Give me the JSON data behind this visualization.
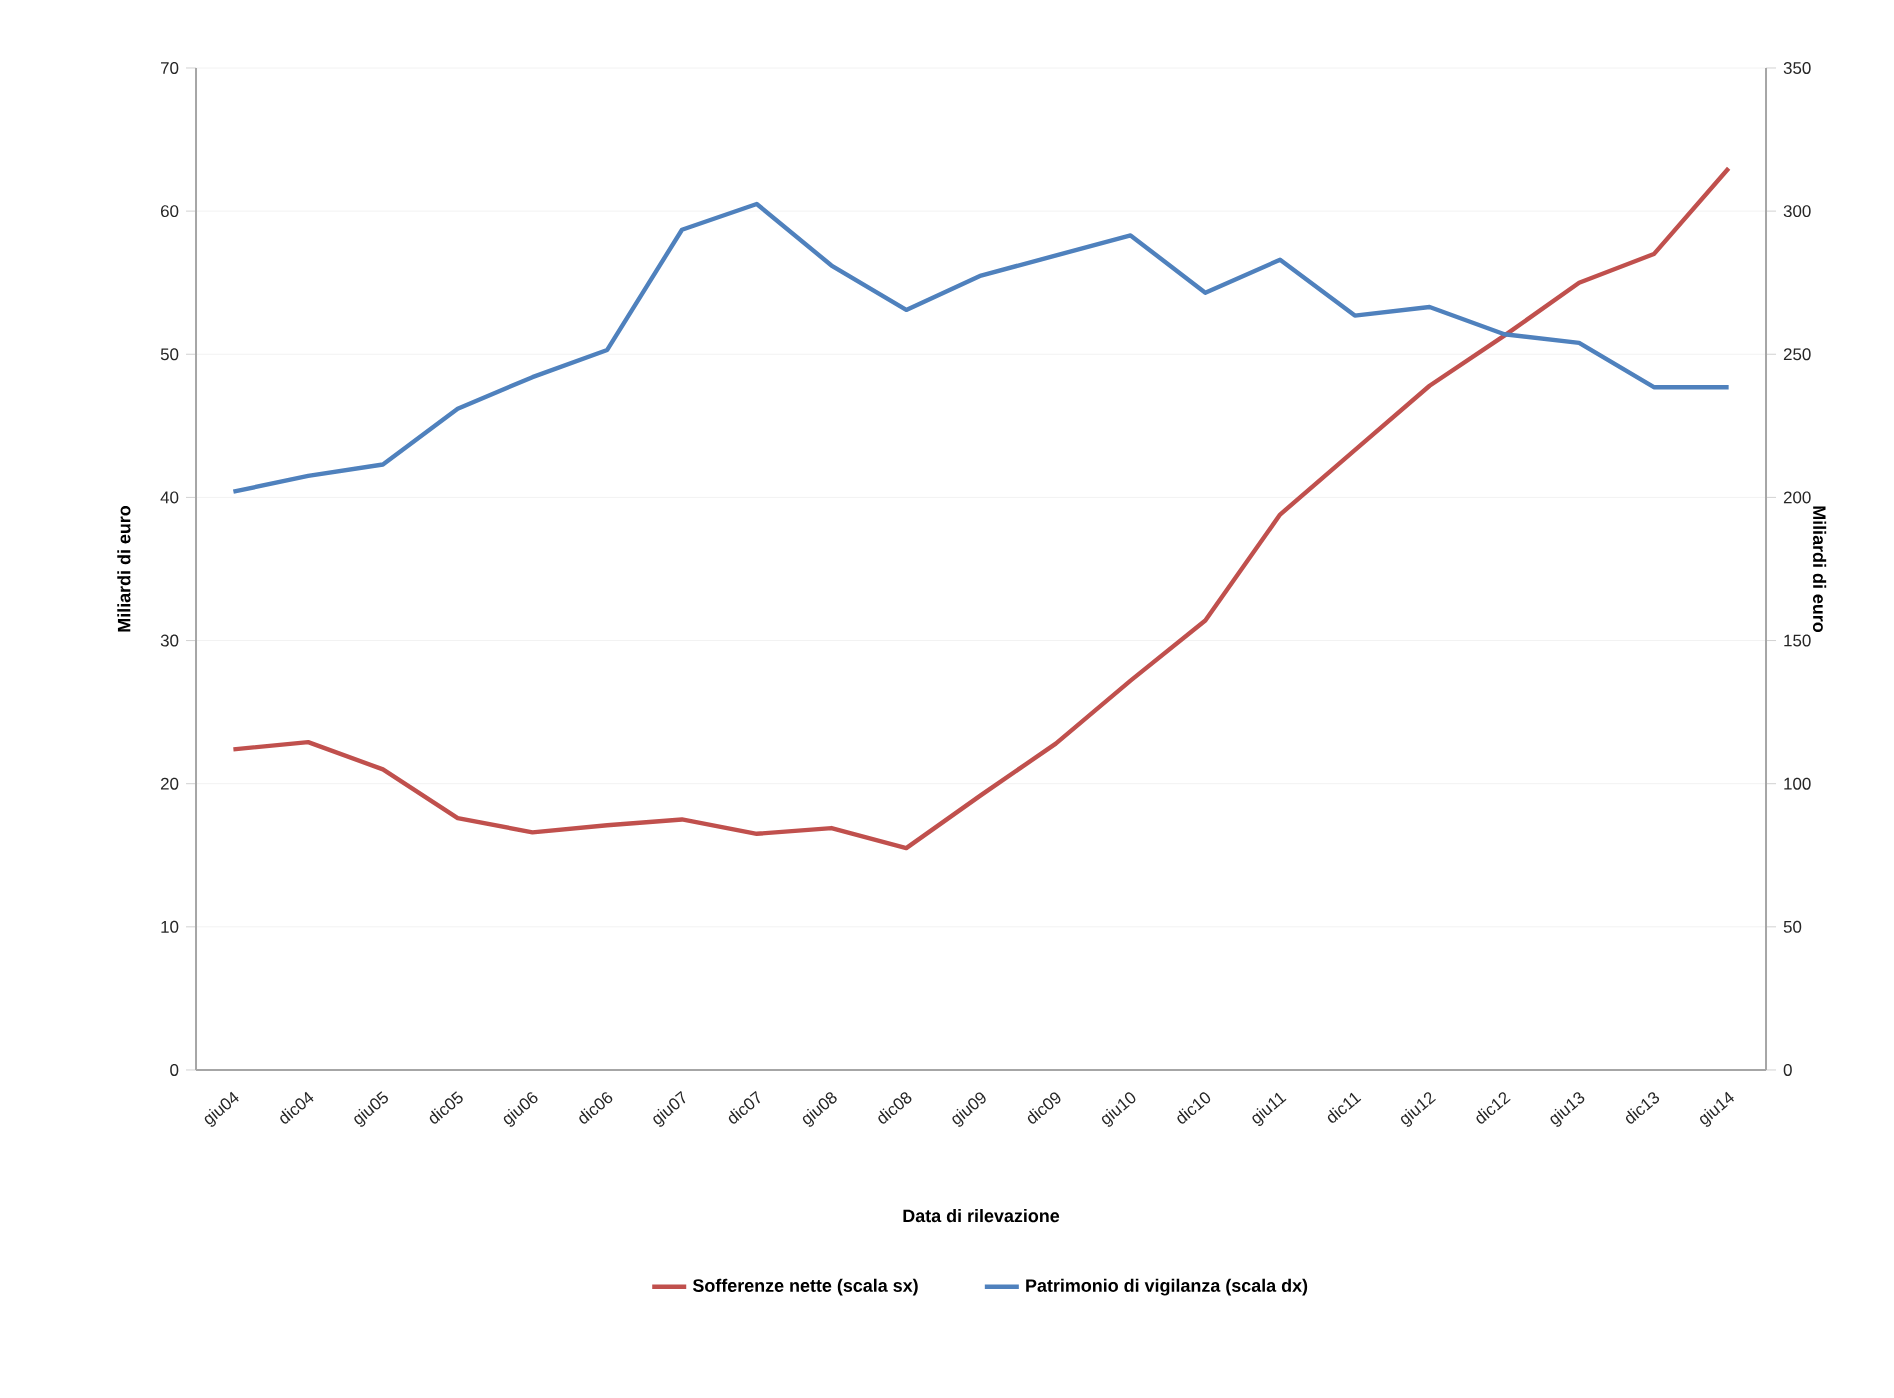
{
  "chart_data": {
    "type": "line",
    "xlabel": "Data di rilevazione",
    "ylabel": "Miliardi di euro",
    "y2label": "Miliardi di euro",
    "categories": [
      "giu04",
      "dic04",
      "giu05",
      "dic05",
      "giu06",
      "dic06",
      "giu07",
      "dic07",
      "giu08",
      "dic08",
      "giu09",
      "dic09",
      "giu10",
      "dic10",
      "giu11",
      "dic11",
      "giu12",
      "dic12",
      "giu13",
      "dic13",
      "giu14"
    ],
    "series": [
      {
        "name": "Sofferenze nette (scala sx)",
        "color": "#c0504d",
        "axis": "y",
        "values": [
          22.4,
          22.9,
          21.0,
          17.6,
          16.6,
          17.1,
          17.5,
          16.5,
          16.9,
          15.5,
          19.2,
          22.8,
          27.2,
          31.4,
          38.8,
          43.3,
          47.8,
          51.3,
          55.0,
          57.0,
          63.0
        ]
      },
      {
        "name": "Patrimonio di vigilanza (scala dx)",
        "color": "#4f81bd",
        "axis": "y2",
        "values": [
          202,
          207.5,
          211.5,
          231,
          242,
          251.5,
          293.5,
          302.5,
          281,
          265.5,
          277.5,
          284.5,
          291.5,
          271.5,
          283,
          263.5,
          266.5,
          257,
          254,
          238.5,
          238.5
        ]
      }
    ],
    "ylim": [
      0,
      70
    ],
    "yticks": [
      0,
      10,
      20,
      30,
      40,
      50,
      60,
      70
    ],
    "y2lim": [
      0,
      350
    ],
    "y2ticks": [
      0,
      50,
      100,
      150,
      200,
      250,
      300,
      350
    ],
    "grid": "y",
    "legend": "bottom"
  }
}
